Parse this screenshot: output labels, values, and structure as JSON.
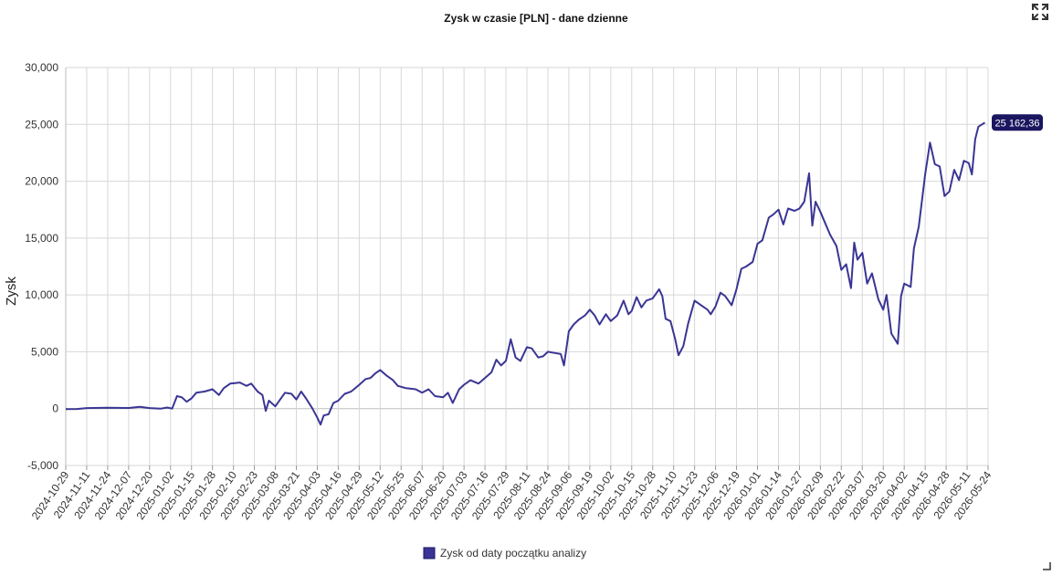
{
  "icons": {
    "fullscreen": "fullscreen-icon",
    "resize": "resize-handle-icon"
  },
  "colors": {
    "line": "#3a3594",
    "label_bg": "#1a1660",
    "grid": "#d7d7d7"
  },
  "chart_data": {
    "type": "line",
    "title": "Zysk w czasie [PLN] - dane dzienne",
    "xlabel": "",
    "ylabel": "Zysk",
    "ylim": [
      -5000,
      30000
    ],
    "yticks": [
      -5000,
      0,
      5000,
      10000,
      15000,
      20000,
      25000,
      30000
    ],
    "ytick_labels": [
      "-5,000",
      "0",
      "5,000",
      "10,000",
      "15,000",
      "20,000",
      "25,000",
      "30,000"
    ],
    "xlim": [
      "2024-10-29",
      "2026-05-24"
    ],
    "xtick_labels": [
      "2024-10-29",
      "2024-11-11",
      "2024-11-24",
      "2024-12-07",
      "2024-12-20",
      "2025-01-02",
      "2025-01-15",
      "2025-01-28",
      "2025-02-10",
      "2025-02-23",
      "2025-03-08",
      "2025-03-21",
      "2025-04-03",
      "2025-04-16",
      "2025-04-29",
      "2025-05-12",
      "2025-05-25",
      "2025-06-07",
      "2025-06-20",
      "2025-07-03",
      "2025-07-16",
      "2025-07-29",
      "2025-08-11",
      "2025-08-24",
      "2025-09-06",
      "2025-09-19",
      "2025-10-02",
      "2025-10-15",
      "2025-10-28",
      "2025-11-10",
      "2025-11-23",
      "2025-12-06",
      "2025-12-19",
      "2026-01-01",
      "2026-01-14",
      "2026-01-27",
      "2026-02-09",
      "2026-02-22",
      "2026-03-07",
      "2026-03-20",
      "2026-04-02",
      "2026-04-15",
      "2026-04-28",
      "2026-05-11",
      "2026-05-24"
    ],
    "grid": true,
    "legend_position": "bottom-center",
    "last_value_label": "25 162,36",
    "series": [
      {
        "name": "Zysk od daty początku analizy",
        "points": [
          [
            "2024-10-29",
            -50
          ],
          [
            "2024-11-05",
            -30
          ],
          [
            "2024-11-11",
            50
          ],
          [
            "2024-11-24",
            80
          ],
          [
            "2024-12-07",
            60
          ],
          [
            "2024-12-14",
            150
          ],
          [
            "2024-12-20",
            50
          ],
          [
            "2024-12-27",
            0
          ],
          [
            "2024-12-31",
            100
          ],
          [
            "2025-01-03",
            0
          ],
          [
            "2025-01-06",
            1100
          ],
          [
            "2025-01-09",
            1000
          ],
          [
            "2025-01-12",
            600
          ],
          [
            "2025-01-15",
            900
          ],
          [
            "2025-01-18",
            1400
          ],
          [
            "2025-01-23",
            1500
          ],
          [
            "2025-01-28",
            1700
          ],
          [
            "2025-02-01",
            1200
          ],
          [
            "2025-02-04",
            1800
          ],
          [
            "2025-02-08",
            2200
          ],
          [
            "2025-02-14",
            2300
          ],
          [
            "2025-02-18",
            2000
          ],
          [
            "2025-02-21",
            2200
          ],
          [
            "2025-02-25",
            1500
          ],
          [
            "2025-02-28",
            1200
          ],
          [
            "2025-03-02",
            -200
          ],
          [
            "2025-03-04",
            700
          ],
          [
            "2025-03-08",
            200
          ],
          [
            "2025-03-11",
            800
          ],
          [
            "2025-03-14",
            1400
          ],
          [
            "2025-03-18",
            1300
          ],
          [
            "2025-03-21",
            800
          ],
          [
            "2025-03-24",
            1500
          ],
          [
            "2025-03-27",
            900
          ],
          [
            "2025-03-31",
            0
          ],
          [
            "2025-04-03",
            -800
          ],
          [
            "2025-04-05",
            -1400
          ],
          [
            "2025-04-07",
            -600
          ],
          [
            "2025-04-10",
            -500
          ],
          [
            "2025-04-13",
            500
          ],
          [
            "2025-04-16",
            700
          ],
          [
            "2025-04-20",
            1300
          ],
          [
            "2025-04-24",
            1500
          ],
          [
            "2025-04-29",
            2100
          ],
          [
            "2025-05-03",
            2600
          ],
          [
            "2025-05-06",
            2700
          ],
          [
            "2025-05-09",
            3100
          ],
          [
            "2025-05-12",
            3400
          ],
          [
            "2025-05-16",
            2900
          ],
          [
            "2025-05-20",
            2500
          ],
          [
            "2025-05-23",
            2000
          ],
          [
            "2025-05-28",
            1800
          ],
          [
            "2025-06-03",
            1700
          ],
          [
            "2025-06-07",
            1400
          ],
          [
            "2025-06-11",
            1700
          ],
          [
            "2025-06-15",
            1100
          ],
          [
            "2025-06-20",
            1000
          ],
          [
            "2025-06-23",
            1400
          ],
          [
            "2025-06-26",
            500
          ],
          [
            "2025-06-30",
            1700
          ],
          [
            "2025-07-03",
            2100
          ],
          [
            "2025-07-07",
            2500
          ],
          [
            "2025-07-12",
            2200
          ],
          [
            "2025-07-16",
            2700
          ],
          [
            "2025-07-20",
            3200
          ],
          [
            "2025-07-23",
            4300
          ],
          [
            "2025-07-26",
            3800
          ],
          [
            "2025-07-29",
            4200
          ],
          [
            "2025-08-01",
            6100
          ],
          [
            "2025-08-04",
            4500
          ],
          [
            "2025-08-07",
            4200
          ],
          [
            "2025-08-11",
            5400
          ],
          [
            "2025-08-14",
            5300
          ],
          [
            "2025-08-18",
            4500
          ],
          [
            "2025-08-21",
            4600
          ],
          [
            "2025-08-24",
            5000
          ],
          [
            "2025-08-28",
            4900
          ],
          [
            "2025-09-01",
            4800
          ],
          [
            "2025-09-03",
            3800
          ],
          [
            "2025-09-06",
            6800
          ],
          [
            "2025-09-09",
            7400
          ],
          [
            "2025-09-12",
            7800
          ],
          [
            "2025-09-16",
            8200
          ],
          [
            "2025-09-19",
            8700
          ],
          [
            "2025-09-22",
            8200
          ],
          [
            "2025-09-25",
            7400
          ],
          [
            "2025-09-29",
            8300
          ],
          [
            "2025-10-02",
            7700
          ],
          [
            "2025-10-06",
            8200
          ],
          [
            "2025-10-10",
            9500
          ],
          [
            "2025-10-13",
            8300
          ],
          [
            "2025-10-15",
            8600
          ],
          [
            "2025-10-18",
            9800
          ],
          [
            "2025-10-21",
            8900
          ],
          [
            "2025-10-24",
            9500
          ],
          [
            "2025-10-28",
            9700
          ],
          [
            "2025-11-01",
            10500
          ],
          [
            "2025-11-03",
            9900
          ],
          [
            "2025-11-05",
            7900
          ],
          [
            "2025-11-08",
            7700
          ],
          [
            "2025-11-11",
            6100
          ],
          [
            "2025-11-13",
            4700
          ],
          [
            "2025-11-16",
            5500
          ],
          [
            "2025-11-19",
            7500
          ],
          [
            "2025-11-23",
            9500
          ],
          [
            "2025-11-27",
            9100
          ],
          [
            "2025-12-01",
            8700
          ],
          [
            "2025-12-03",
            8300
          ],
          [
            "2025-12-06",
            9000
          ],
          [
            "2025-12-09",
            10200
          ],
          [
            "2025-12-12",
            9900
          ],
          [
            "2025-12-16",
            9100
          ],
          [
            "2025-12-19",
            10500
          ],
          [
            "2025-12-22",
            12300
          ],
          [
            "2025-12-25",
            12500
          ],
          [
            "2025-12-29",
            12900
          ],
          [
            "2026-01-01",
            14500
          ],
          [
            "2026-01-04",
            14800
          ],
          [
            "2026-01-08",
            16800
          ],
          [
            "2026-01-11",
            17100
          ],
          [
            "2026-01-14",
            17500
          ],
          [
            "2026-01-17",
            16200
          ],
          [
            "2026-01-20",
            17600
          ],
          [
            "2026-01-24",
            17400
          ],
          [
            "2026-01-27",
            17600
          ],
          [
            "2026-01-30",
            18200
          ],
          [
            "2026-02-02",
            20700
          ],
          [
            "2026-02-04",
            16100
          ],
          [
            "2026-02-06",
            18200
          ],
          [
            "2026-02-09",
            17300
          ],
          [
            "2026-02-12",
            16300
          ],
          [
            "2026-02-15",
            15300
          ],
          [
            "2026-02-19",
            14300
          ],
          [
            "2026-02-22",
            12200
          ],
          [
            "2026-02-25",
            12700
          ],
          [
            "2026-02-28",
            10600
          ],
          [
            "2026-03-02",
            14600
          ],
          [
            "2026-03-04",
            13100
          ],
          [
            "2026-03-07",
            13700
          ],
          [
            "2026-03-10",
            11000
          ],
          [
            "2026-03-13",
            11900
          ],
          [
            "2026-03-17",
            9600
          ],
          [
            "2026-03-20",
            8700
          ],
          [
            "2026-03-22",
            10000
          ],
          [
            "2026-03-25",
            6600
          ],
          [
            "2026-03-29",
            5700
          ],
          [
            "2026-03-31",
            9900
          ],
          [
            "2026-04-02",
            11000
          ],
          [
            "2026-04-06",
            10700
          ],
          [
            "2026-04-08",
            14100
          ],
          [
            "2026-04-11",
            16000
          ],
          [
            "2026-04-15",
            20600
          ],
          [
            "2026-04-18",
            23400
          ],
          [
            "2026-04-21",
            21500
          ],
          [
            "2026-04-24",
            21300
          ],
          [
            "2026-04-27",
            18700
          ],
          [
            "2026-04-30",
            19100
          ],
          [
            "2026-05-03",
            21000
          ],
          [
            "2026-05-06",
            20100
          ],
          [
            "2026-05-09",
            21800
          ],
          [
            "2026-05-12",
            21600
          ],
          [
            "2026-05-14",
            20600
          ],
          [
            "2026-05-16",
            23700
          ],
          [
            "2026-05-18",
            24800
          ],
          [
            "2026-05-22",
            25162.36
          ]
        ]
      }
    ]
  }
}
